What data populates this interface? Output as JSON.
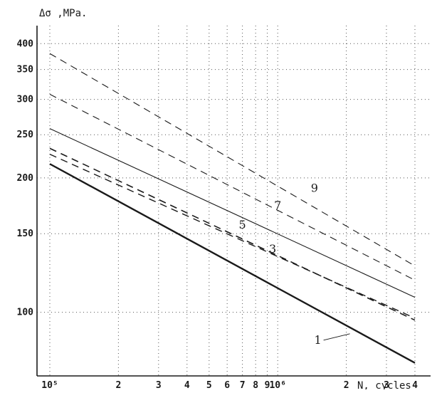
{
  "chart_data": {
    "type": "line",
    "ylabel": "Δσ ,MPa.",
    "xlabel": "N, cycles",
    "x_scale": "log",
    "y_scale": "log",
    "xlim": [
      100000,
      4000000
    ],
    "ylim": [
      72,
      420
    ],
    "grid": true,
    "x_ticks": [
      {
        "value": 100000,
        "label": "10⁵"
      },
      {
        "value": 200000,
        "label": "2"
      },
      {
        "value": 300000,
        "label": "3"
      },
      {
        "value": 400000,
        "label": "4"
      },
      {
        "value": 500000,
        "label": "5"
      },
      {
        "value": 600000,
        "label": "6"
      },
      {
        "value": 700000,
        "label": "7"
      },
      {
        "value": 800000,
        "label": "8"
      },
      {
        "value": 900000,
        "label": "9"
      },
      {
        "value": 1000000,
        "label": "10⁶"
      },
      {
        "value": 2000000,
        "label": "2"
      },
      {
        "value": 3000000,
        "label": "3"
      },
      {
        "value": 4000000,
        "label": "4"
      }
    ],
    "y_ticks": [
      {
        "value": 100,
        "label": "100"
      },
      {
        "value": 150,
        "label": "150"
      },
      {
        "value": 200,
        "label": "200"
      },
      {
        "value": 250,
        "label": "250"
      },
      {
        "value": 300,
        "label": "300"
      },
      {
        "value": 350,
        "label": "350"
      },
      {
        "value": 400,
        "label": "400"
      }
    ],
    "series": [
      {
        "name": "1",
        "style": "solid",
        "stroke_width": 2.4,
        "label_at": [
          1500000,
          85
        ],
        "x": [
          100000,
          4000000
        ],
        "y": [
          215,
          77
        ]
      },
      {
        "name": "",
        "style": "dashed",
        "stroke_width": 1.6,
        "x": [
          100000,
          4000000
        ],
        "y": [
          233,
          96
        ]
      },
      {
        "name": "3",
        "style": "dashed",
        "stroke_width": 1.4,
        "label_at": [
          950000,
          136
        ],
        "x": [
          100000,
          4000000
        ],
        "y": [
          226,
          97
        ]
      },
      {
        "name": "5",
        "style": "solid",
        "stroke_width": 1.1,
        "label_at": [
          700000,
          154
        ],
        "x": [
          100000,
          4000000
        ],
        "y": [
          258,
          108
        ]
      },
      {
        "name": "7",
        "style": "dashed",
        "stroke_width": 1.1,
        "label_at": [
          1000000,
          170
        ],
        "x": [
          100000,
          4000000
        ],
        "y": [
          308,
          118
        ]
      },
      {
        "name": "9",
        "style": "dashed",
        "stroke_width": 1.1,
        "label_at": [
          1450000,
          186
        ],
        "x": [
          100000,
          4000000
        ],
        "y": [
          380,
          127
        ]
      }
    ]
  }
}
